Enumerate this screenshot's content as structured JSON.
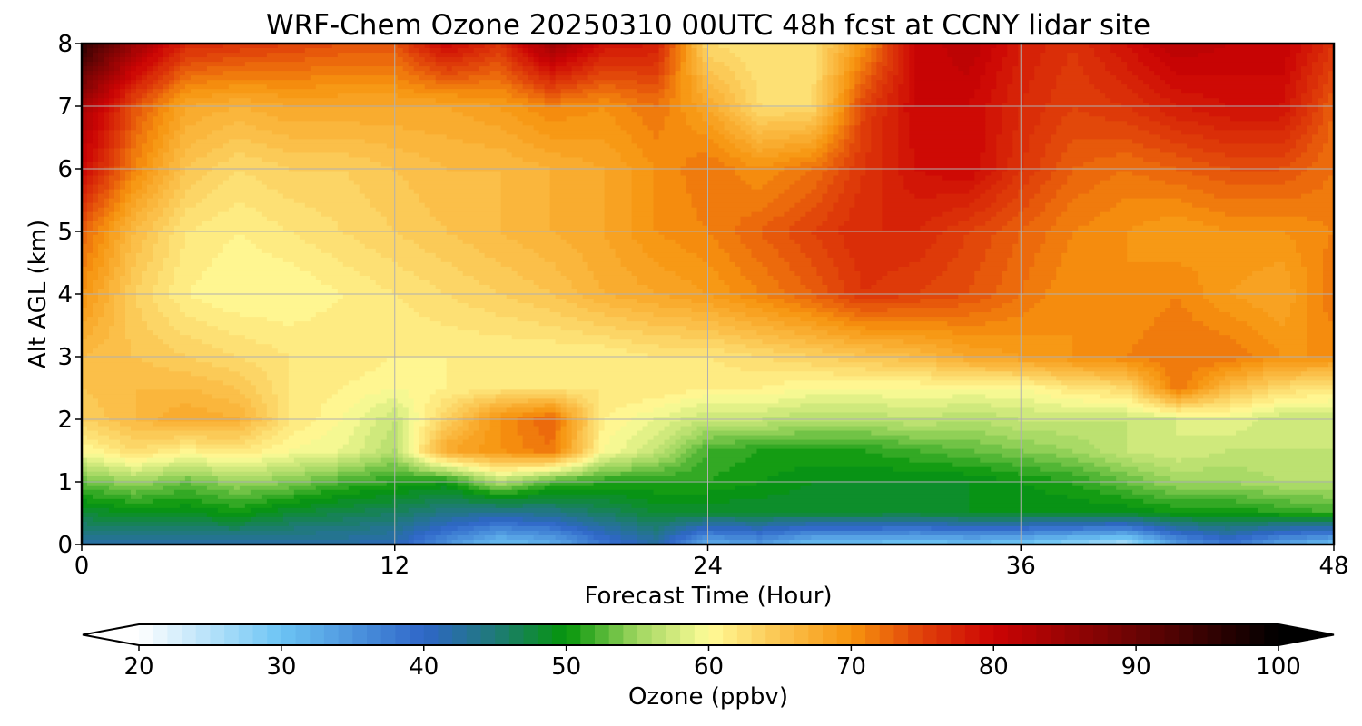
{
  "chart_data": {
    "type": "heatmap",
    "title": "WRF-Chem Ozone  20250310 00UTC 48h fcst at CCNY lidar site",
    "xlabel": "Forecast Time (Hour)",
    "ylabel": "Alt AGL (km)",
    "xlim": [
      0,
      48
    ],
    "ylim": [
      0,
      8
    ],
    "xticks": [
      0,
      12,
      24,
      36,
      48
    ],
    "yticks": [
      0,
      1,
      2,
      3,
      4,
      5,
      6,
      7,
      8
    ],
    "grid": true,
    "colorbar": {
      "label": "Ozone  (ppbv)",
      "min": 20,
      "max": 100,
      "ticks": [
        20,
        30,
        40,
        50,
        60,
        70,
        80,
        90,
        100
      ],
      "extend": "both",
      "colors": [
        {
          "v": 20,
          "c": "#ffffff"
        },
        {
          "v": 30,
          "c": "#6cc4f4"
        },
        {
          "v": 40,
          "c": "#2f66c8"
        },
        {
          "v": 45,
          "c": "#1f7a78"
        },
        {
          "v": 50,
          "c": "#05960a"
        },
        {
          "v": 55,
          "c": "#9fd660"
        },
        {
          "v": 60,
          "c": "#fffc98"
        },
        {
          "v": 65,
          "c": "#fbc450"
        },
        {
          "v": 70,
          "c": "#f7940e"
        },
        {
          "v": 75,
          "c": "#e0400a"
        },
        {
          "v": 80,
          "c": "#cc0404"
        },
        {
          "v": 90,
          "c": "#6a0404"
        },
        {
          "v": 100,
          "c": "#000000"
        }
      ]
    },
    "x": [
      0,
      2,
      4,
      6,
      8,
      10,
      12,
      14,
      16,
      18,
      20,
      22,
      24,
      26,
      28,
      30,
      32,
      34,
      36,
      38,
      40,
      42,
      44,
      46,
      48
    ],
    "y": [
      0,
      0.5,
      1,
      1.5,
      2,
      2.5,
      3,
      4,
      5,
      6,
      7,
      8
    ],
    "z": [
      [
        42,
        42,
        42,
        42,
        42,
        42,
        41,
        35,
        30,
        32,
        38,
        42,
        32,
        34,
        30,
        30,
        29,
        30,
        29,
        27,
        25,
        34,
        38,
        33,
        30
      ],
      [
        48,
        49,
        49,
        50,
        48,
        47,
        46,
        44,
        43,
        44,
        46,
        48,
        48,
        48,
        48,
        48,
        48,
        49,
        49,
        49,
        49,
        50,
        50,
        51,
        52
      ],
      [
        53,
        55,
        53,
        55,
        54,
        52,
        51,
        50,
        56,
        52,
        51,
        51,
        51,
        50,
        49,
        49,
        49,
        49,
        50,
        51,
        53,
        55,
        55,
        56,
        56
      ],
      [
        60,
        63,
        61,
        62,
        60,
        59,
        56,
        68,
        70,
        72,
        60,
        57,
        52,
        51,
        51,
        51,
        52,
        53,
        54,
        55,
        57,
        58,
        57,
        57,
        57
      ],
      [
        64,
        66,
        68,
        67,
        62,
        60,
        57,
        64,
        70,
        73,
        61,
        59,
        57,
        57,
        56,
        56,
        57,
        56,
        57,
        57,
        57,
        58,
        59,
        57,
        57
      ],
      [
        65,
        66,
        66,
        65,
        62,
        61,
        60,
        61,
        62,
        62,
        62,
        62,
        61,
        61,
        60,
        60,
        60,
        60,
        60,
        62,
        63,
        72,
        66,
        63,
        62
      ],
      [
        66,
        65,
        64,
        63,
        62,
        62,
        61,
        61,
        61,
        61,
        61,
        62,
        62,
        63,
        64,
        65,
        66,
        68,
        69,
        70,
        71,
        72,
        72,
        70,
        70
      ],
      [
        70,
        64,
        61,
        60,
        60,
        61,
        62,
        63,
        64,
        65,
        67,
        68,
        69,
        71,
        73,
        76,
        75,
        74,
        72,
        70,
        70,
        71,
        69,
        68,
        72
      ],
      [
        73,
        66,
        62,
        61,
        62,
        63,
        64,
        65,
        66,
        67,
        68,
        70,
        71,
        73,
        75,
        77,
        77,
        75,
        73,
        71,
        70,
        69,
        70,
        70,
        71
      ],
      [
        80,
        71,
        65,
        63,
        64,
        64,
        65,
        66,
        66,
        67,
        68,
        70,
        72,
        70,
        72,
        76,
        79,
        80,
        76,
        73,
        72,
        73,
        74,
        74,
        72
      ],
      [
        84,
        74,
        68,
        67,
        68,
        68,
        68,
        68,
        69,
        71,
        70,
        72,
        68,
        63,
        63,
        75,
        80,
        80,
        77,
        75,
        76,
        78,
        79,
        79,
        73
      ],
      [
        96,
        85,
        77,
        76,
        75,
        74,
        74,
        80,
        76,
        85,
        79,
        78,
        63,
        62,
        62,
        70,
        80,
        82,
        78,
        76,
        79,
        82,
        81,
        81,
        76
      ]
    ]
  }
}
